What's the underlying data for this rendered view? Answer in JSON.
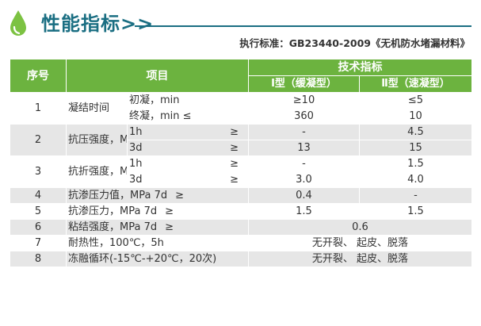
{
  "header": {
    "title": "性能指标>>",
    "standard": "执行标准：GB23440-2009《无机防水堵漏材料》"
  },
  "colors": {
    "accent_green": "#6cb33f",
    "title_blue": "#1a6e82",
    "row_alt": "#e6e6e6"
  },
  "icon": "water-drop-icon",
  "table": {
    "columns": {
      "seq": "序号",
      "item": "项目",
      "spec": "技术指标",
      "type1": "Ⅰ型（缓凝型）",
      "type2": "Ⅱ型（速凝型）"
    },
    "rows": [
      {
        "seq": "1",
        "group": "凝结时间",
        "subs": [
          {
            "cond": "初凝，min",
            "sym": "",
            "v1": "≥10",
            "v2": "≤5"
          },
          {
            "cond": "终凝，min  ≤",
            "sym": "",
            "v1": "360",
            "v2": "10"
          }
        ]
      },
      {
        "seq": "2",
        "group": "抗压强度，MPa",
        "subs": [
          {
            "cond": "1h",
            "sym": "≥",
            "v1": "-",
            "v2": "4.5"
          },
          {
            "cond": "3d",
            "sym": "≥",
            "v1": "13",
            "v2": "15"
          }
        ]
      },
      {
        "seq": "3",
        "group": "抗折强度，MPa",
        "subs": [
          {
            "cond": "1h",
            "sym": "≥",
            "v1": "-",
            "v2": "1.5"
          },
          {
            "cond": "3d",
            "sym": "≥",
            "v1": "3.0",
            "v2": "4.0"
          }
        ]
      },
      {
        "seq": "4",
        "prop": "抗渗压力值，MPa 7d",
        "sym": "≥",
        "v1": "0.4",
        "v2": "-"
      },
      {
        "seq": "5",
        "prop": "抗渗压力，MPa  7d",
        "sym": "≥",
        "v1": "1.5",
        "v2": "1.5"
      },
      {
        "seq": "6",
        "prop": "粘结强度，MPa 7d",
        "sym": "≥",
        "merged": "0.6"
      },
      {
        "seq": "7",
        "prop": "耐热性，100℃，5h",
        "sym": "",
        "merged": "无开裂、 起皮、脱落"
      },
      {
        "seq": "8",
        "prop": "冻融循环(-15℃-+20℃，20次)",
        "sym": "",
        "merged": "无开裂、 起皮、脱落"
      }
    ]
  }
}
